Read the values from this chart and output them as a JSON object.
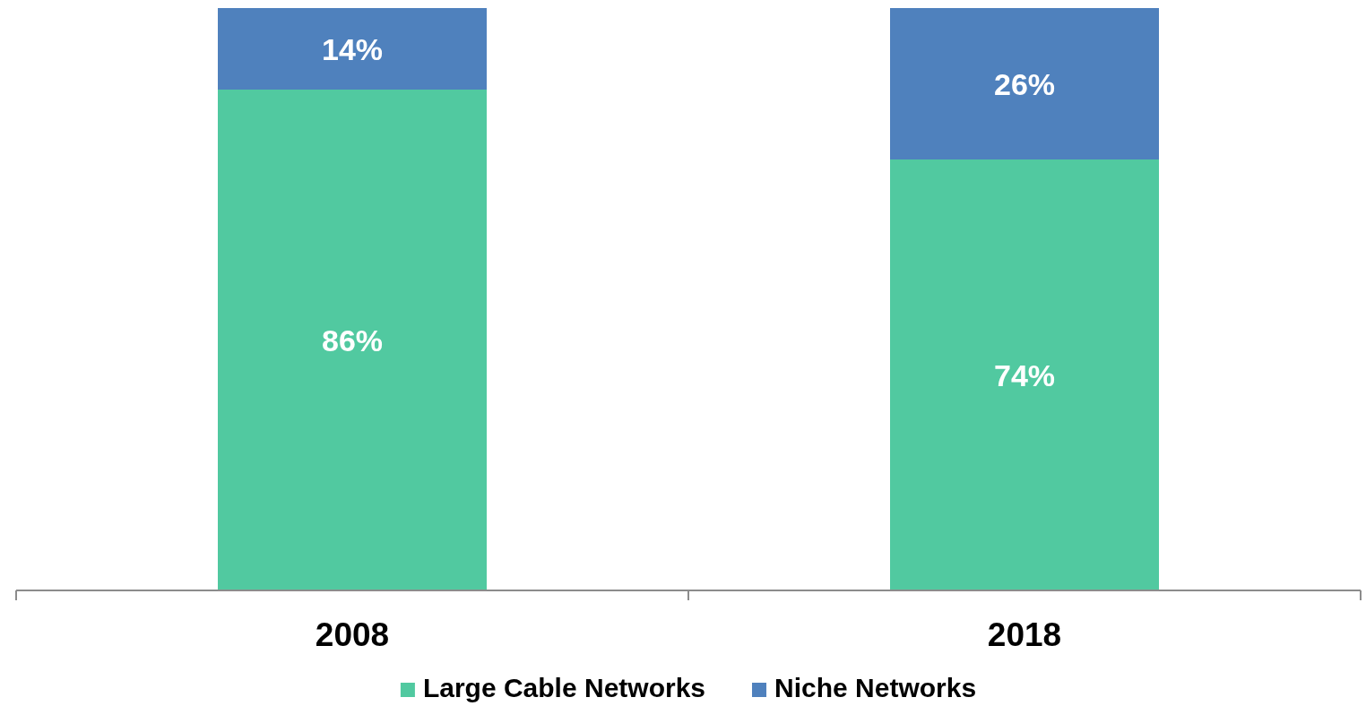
{
  "chart_data": {
    "type": "bar",
    "stacked": true,
    "categories": [
      "2008",
      "2018"
    ],
    "series": [
      {
        "name": "Large Cable Networks",
        "color": "#51c9a0",
        "values": [
          86,
          74
        ],
        "value_labels": [
          "86%",
          "74%"
        ]
      },
      {
        "name": "Niche Networks",
        "color": "#4f81bd",
        "values": [
          14,
          26
        ],
        "value_labels": [
          "14%",
          "26%"
        ]
      }
    ],
    "legend": "bottom"
  }
}
